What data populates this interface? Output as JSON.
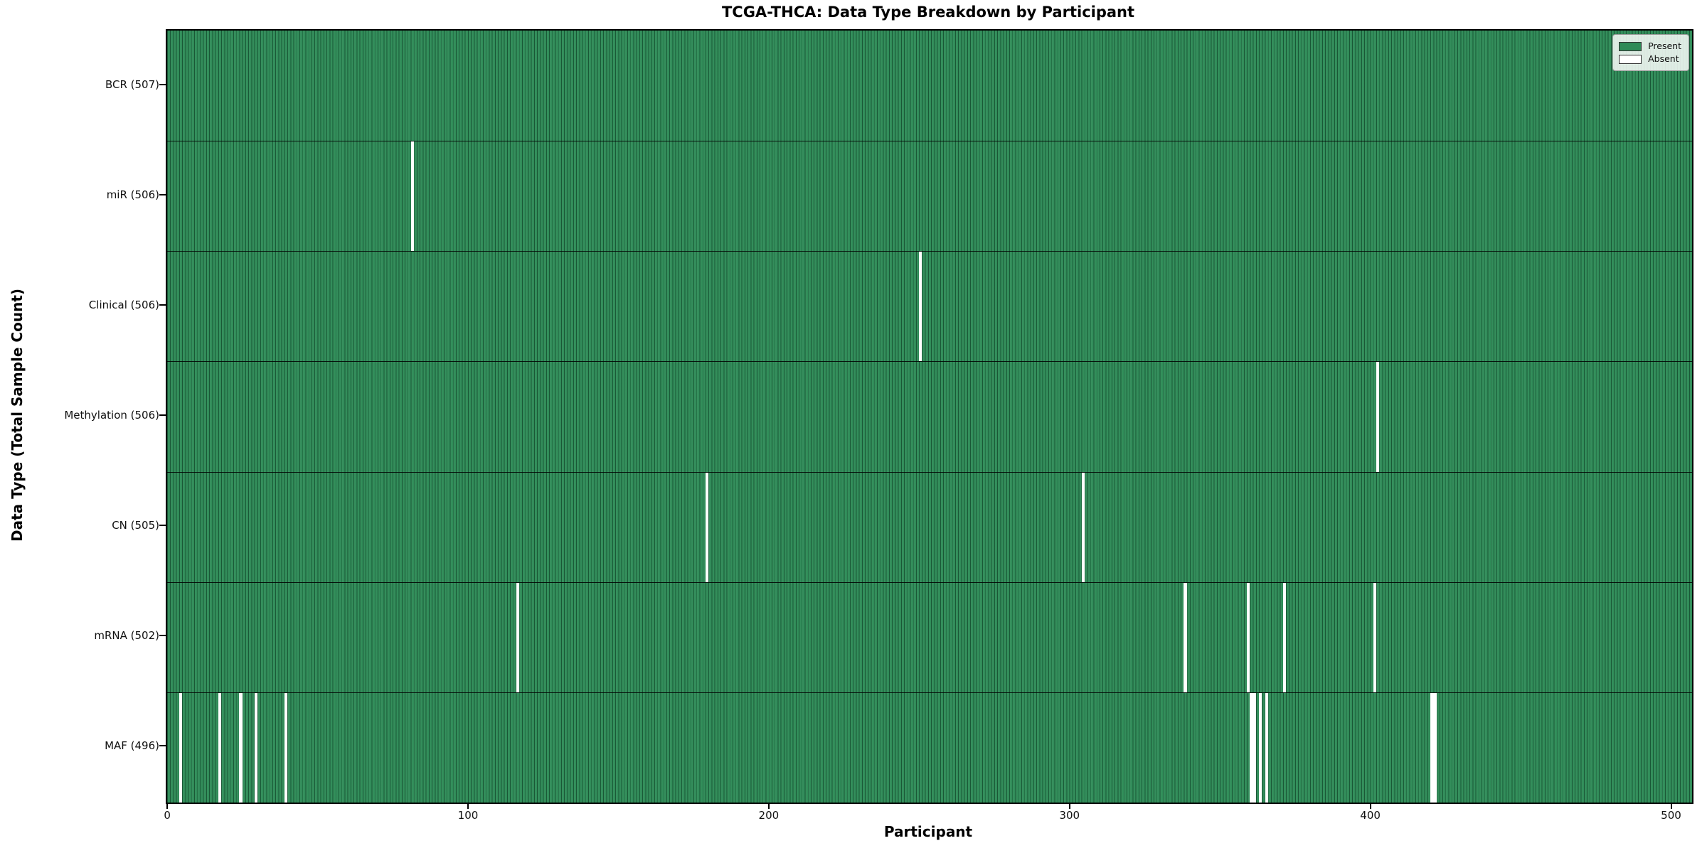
{
  "chart_data": {
    "type": "heatmap",
    "title": "TCGA-THCA: Data Type Breakdown by Participant",
    "xlabel": "Participant",
    "ylabel": "Data Type (Total Sample Count)",
    "x_ticks": [
      0,
      100,
      200,
      300,
      400,
      500
    ],
    "xlim": [
      -0.5,
      506.5
    ],
    "total_participants": 507,
    "grid": false,
    "legend": {
      "position": "upper right",
      "present_label": "Present",
      "absent_label": "Absent"
    },
    "colors": {
      "present": "#2e8b57",
      "absent": "#ffffff",
      "bar_edge": "#0d3d24",
      "row_divider": "#000000"
    },
    "rows": [
      {
        "data_type": "BCR",
        "label": "BCR (507)",
        "present_count": 507,
        "absent_participants": []
      },
      {
        "data_type": "miR",
        "label": "miR (506)",
        "present_count": 506,
        "absent_participants": [
          81
        ]
      },
      {
        "data_type": "Clinical",
        "label": "Clinical (506)",
        "present_count": 506,
        "absent_participants": [
          250
        ]
      },
      {
        "data_type": "Methylation",
        "label": "Methylation (506)",
        "present_count": 506,
        "absent_participants": [
          402
        ]
      },
      {
        "data_type": "CN",
        "label": "CN (505)",
        "present_count": 505,
        "absent_participants": [
          179,
          304
        ]
      },
      {
        "data_type": "mRNA",
        "label": "mRNA (502)",
        "present_count": 502,
        "absent_participants": [
          116,
          338,
          359,
          371,
          401
        ]
      },
      {
        "data_type": "MAF",
        "label": "MAF (496)",
        "present_count": 496,
        "absent_participants": [
          4,
          17,
          24,
          29,
          39,
          360,
          361,
          363,
          365,
          420,
          421
        ]
      }
    ]
  }
}
